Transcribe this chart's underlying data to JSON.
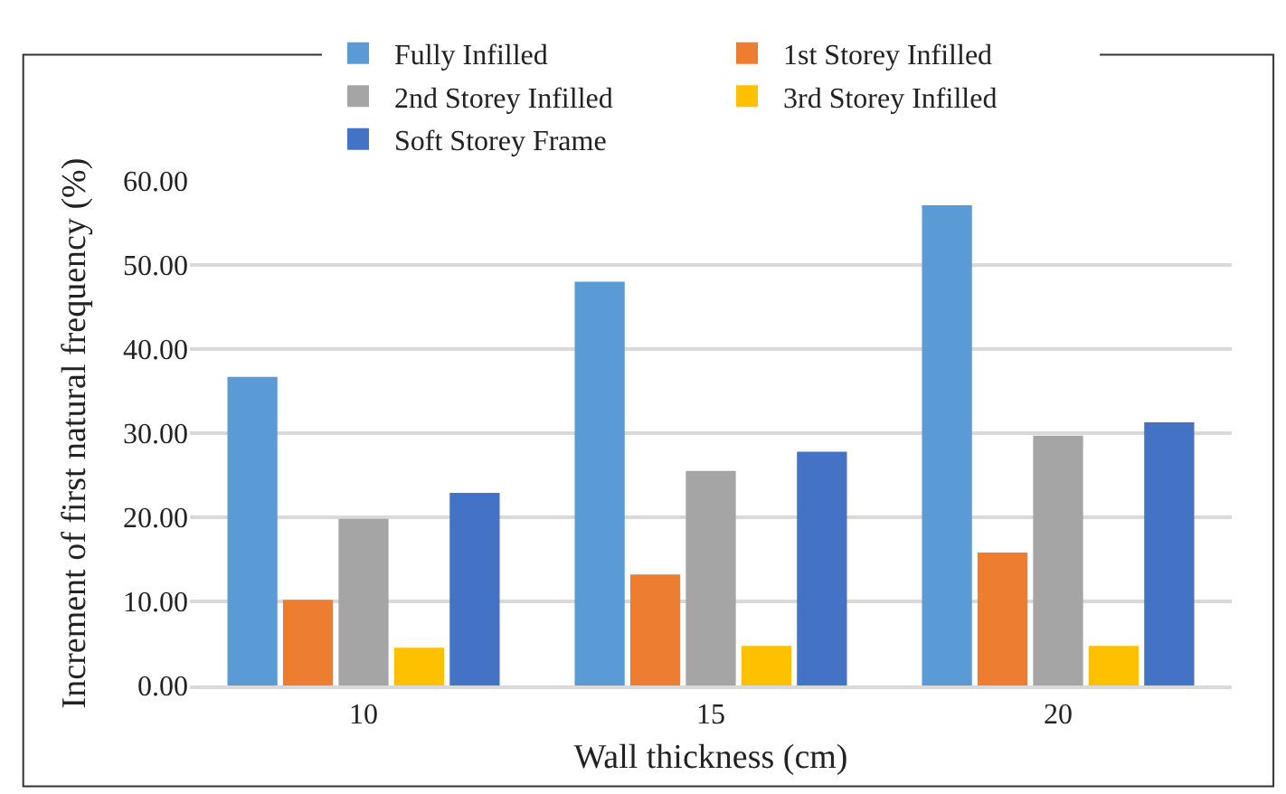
{
  "chart_data": {
    "type": "bar",
    "xlabel": "Wall thickness (cm)",
    "ylabel": "Increment of first natural frequency (%)",
    "categories": [
      "10",
      "15",
      "20"
    ],
    "series": [
      {
        "name": "Fully Infilled",
        "color": "#5b9bd5",
        "values": [
          36.7,
          48.0,
          57.1
        ]
      },
      {
        "name": "1st Storey Infilled",
        "color": "#ed7d31",
        "values": [
          10.2,
          13.2,
          15.8
        ]
      },
      {
        "name": "2nd Storey Infilled",
        "color": "#a5a5a5",
        "values": [
          19.8,
          25.5,
          29.7
        ]
      },
      {
        "name": "3rd Storey Infilled",
        "color": "#ffc000",
        "values": [
          4.5,
          4.7,
          4.7
        ]
      },
      {
        "name": "Soft Storey Frame",
        "color": "#4472c4",
        "values": [
          22.9,
          27.8,
          31.3
        ]
      }
    ],
    "ylim": [
      0,
      60
    ],
    "yticks": [
      {
        "value": 0,
        "label": "0.00"
      },
      {
        "value": 10,
        "label": "10.00"
      },
      {
        "value": 20,
        "label": "20.00"
      },
      {
        "value": 30,
        "label": "30.00"
      },
      {
        "value": 40,
        "label": "40.00"
      },
      {
        "value": 50,
        "label": "50.00"
      },
      {
        "value": 60,
        "label": "60.00"
      }
    ],
    "grid": "y",
    "legend": "top"
  }
}
